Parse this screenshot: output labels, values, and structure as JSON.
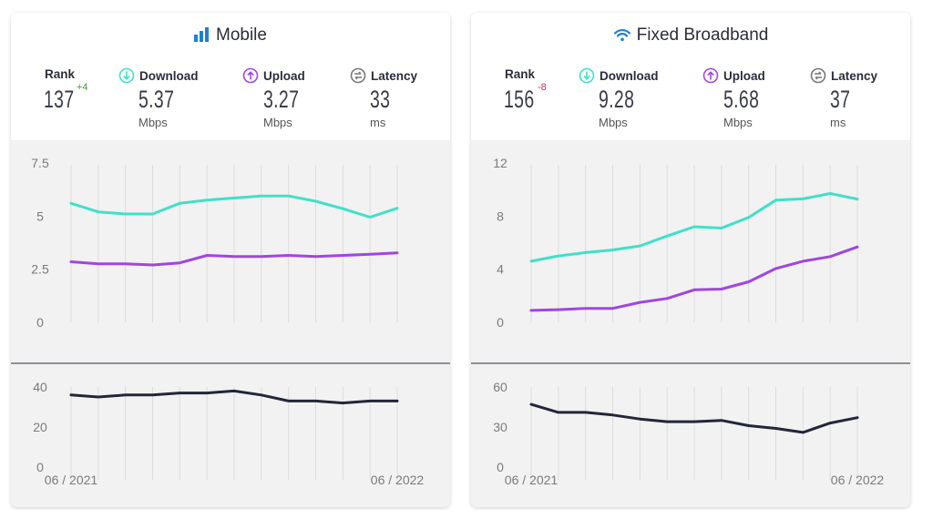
{
  "panels": [
    {
      "title": "Mobile",
      "icon": "signal-bars-icon",
      "rank": {
        "label": "Rank",
        "value": "137",
        "change": "+4",
        "direction": "up"
      },
      "download": {
        "label": "Download",
        "value": "5.37",
        "unit": "Mbps"
      },
      "upload": {
        "label": "Upload",
        "value": "3.27",
        "unit": "Mbps"
      },
      "latency": {
        "label": "Latency",
        "value": "33",
        "unit": "ms"
      },
      "x_start_label": "06 / 2021",
      "x_end_label": "06 / 2022"
    },
    {
      "title": "Fixed Broadband",
      "icon": "wifi-icon",
      "rank": {
        "label": "Rank",
        "value": "156",
        "change": "-8",
        "direction": "down"
      },
      "download": {
        "label": "Download",
        "value": "9.28",
        "unit": "Mbps"
      },
      "upload": {
        "label": "Upload",
        "value": "5.68",
        "unit": "Mbps"
      },
      "latency": {
        "label": "Latency",
        "value": "37",
        "unit": "ms"
      },
      "x_start_label": "06 / 2021",
      "x_end_label": "06 / 2022"
    }
  ],
  "colors": {
    "download": "#40e0c8",
    "upload": "#a046e0",
    "latency": "#23263a",
    "grid": "#dddddd",
    "card_bg": "#f2f2f2"
  },
  "chart_data": [
    {
      "type": "line",
      "panel": "Mobile",
      "x": [
        "06/2021",
        "07/2021",
        "08/2021",
        "09/2021",
        "10/2021",
        "11/2021",
        "12/2021",
        "01/2022",
        "02/2022",
        "03/2022",
        "04/2022",
        "05/2022",
        "06/2022"
      ],
      "series": [
        {
          "name": "Download",
          "values": [
            5.6,
            5.2,
            5.1,
            5.1,
            5.6,
            5.75,
            5.85,
            5.95,
            5.95,
            5.7,
            5.35,
            4.95,
            5.37
          ]
        },
        {
          "name": "Upload",
          "values": [
            2.85,
            2.75,
            2.75,
            2.7,
            2.8,
            3.15,
            3.1,
            3.1,
            3.15,
            3.1,
            3.15,
            3.2,
            3.27
          ]
        }
      ],
      "yticks": [
        "0",
        "2.5",
        "5",
        "7.5"
      ],
      "ylim": [
        0,
        7.5
      ],
      "latency": {
        "name": "Latency",
        "values": [
          36,
          35,
          36,
          36,
          37,
          37,
          38,
          36,
          33,
          33,
          32,
          33,
          33
        ],
        "yticks": [
          "0",
          "20",
          "40"
        ],
        "ylim": [
          0,
          40
        ]
      }
    },
    {
      "type": "line",
      "panel": "Fixed Broadband",
      "x": [
        "06/2021",
        "07/2021",
        "08/2021",
        "09/2021",
        "10/2021",
        "11/2021",
        "12/2021",
        "01/2022",
        "02/2022",
        "03/2022",
        "04/2022",
        "05/2022",
        "06/2022"
      ],
      "series": [
        {
          "name": "Download",
          "values": [
            4.6,
            5.0,
            5.25,
            5.45,
            5.75,
            6.5,
            7.2,
            7.1,
            7.9,
            9.2,
            9.3,
            9.7,
            9.28
          ]
        },
        {
          "name": "Upload",
          "values": [
            0.9,
            0.95,
            1.05,
            1.05,
            1.5,
            1.8,
            2.45,
            2.5,
            3.05,
            4.05,
            4.6,
            4.95,
            5.68
          ]
        }
      ],
      "yticks": [
        "0",
        "4",
        "8",
        "12"
      ],
      "ylim": [
        0,
        12
      ],
      "latency": {
        "name": "Latency",
        "values": [
          47,
          41,
          41,
          39,
          36,
          34,
          34,
          35,
          31,
          29,
          26,
          33,
          37
        ],
        "yticks": [
          "0",
          "30",
          "60"
        ],
        "ylim": [
          0,
          60
        ]
      }
    }
  ]
}
